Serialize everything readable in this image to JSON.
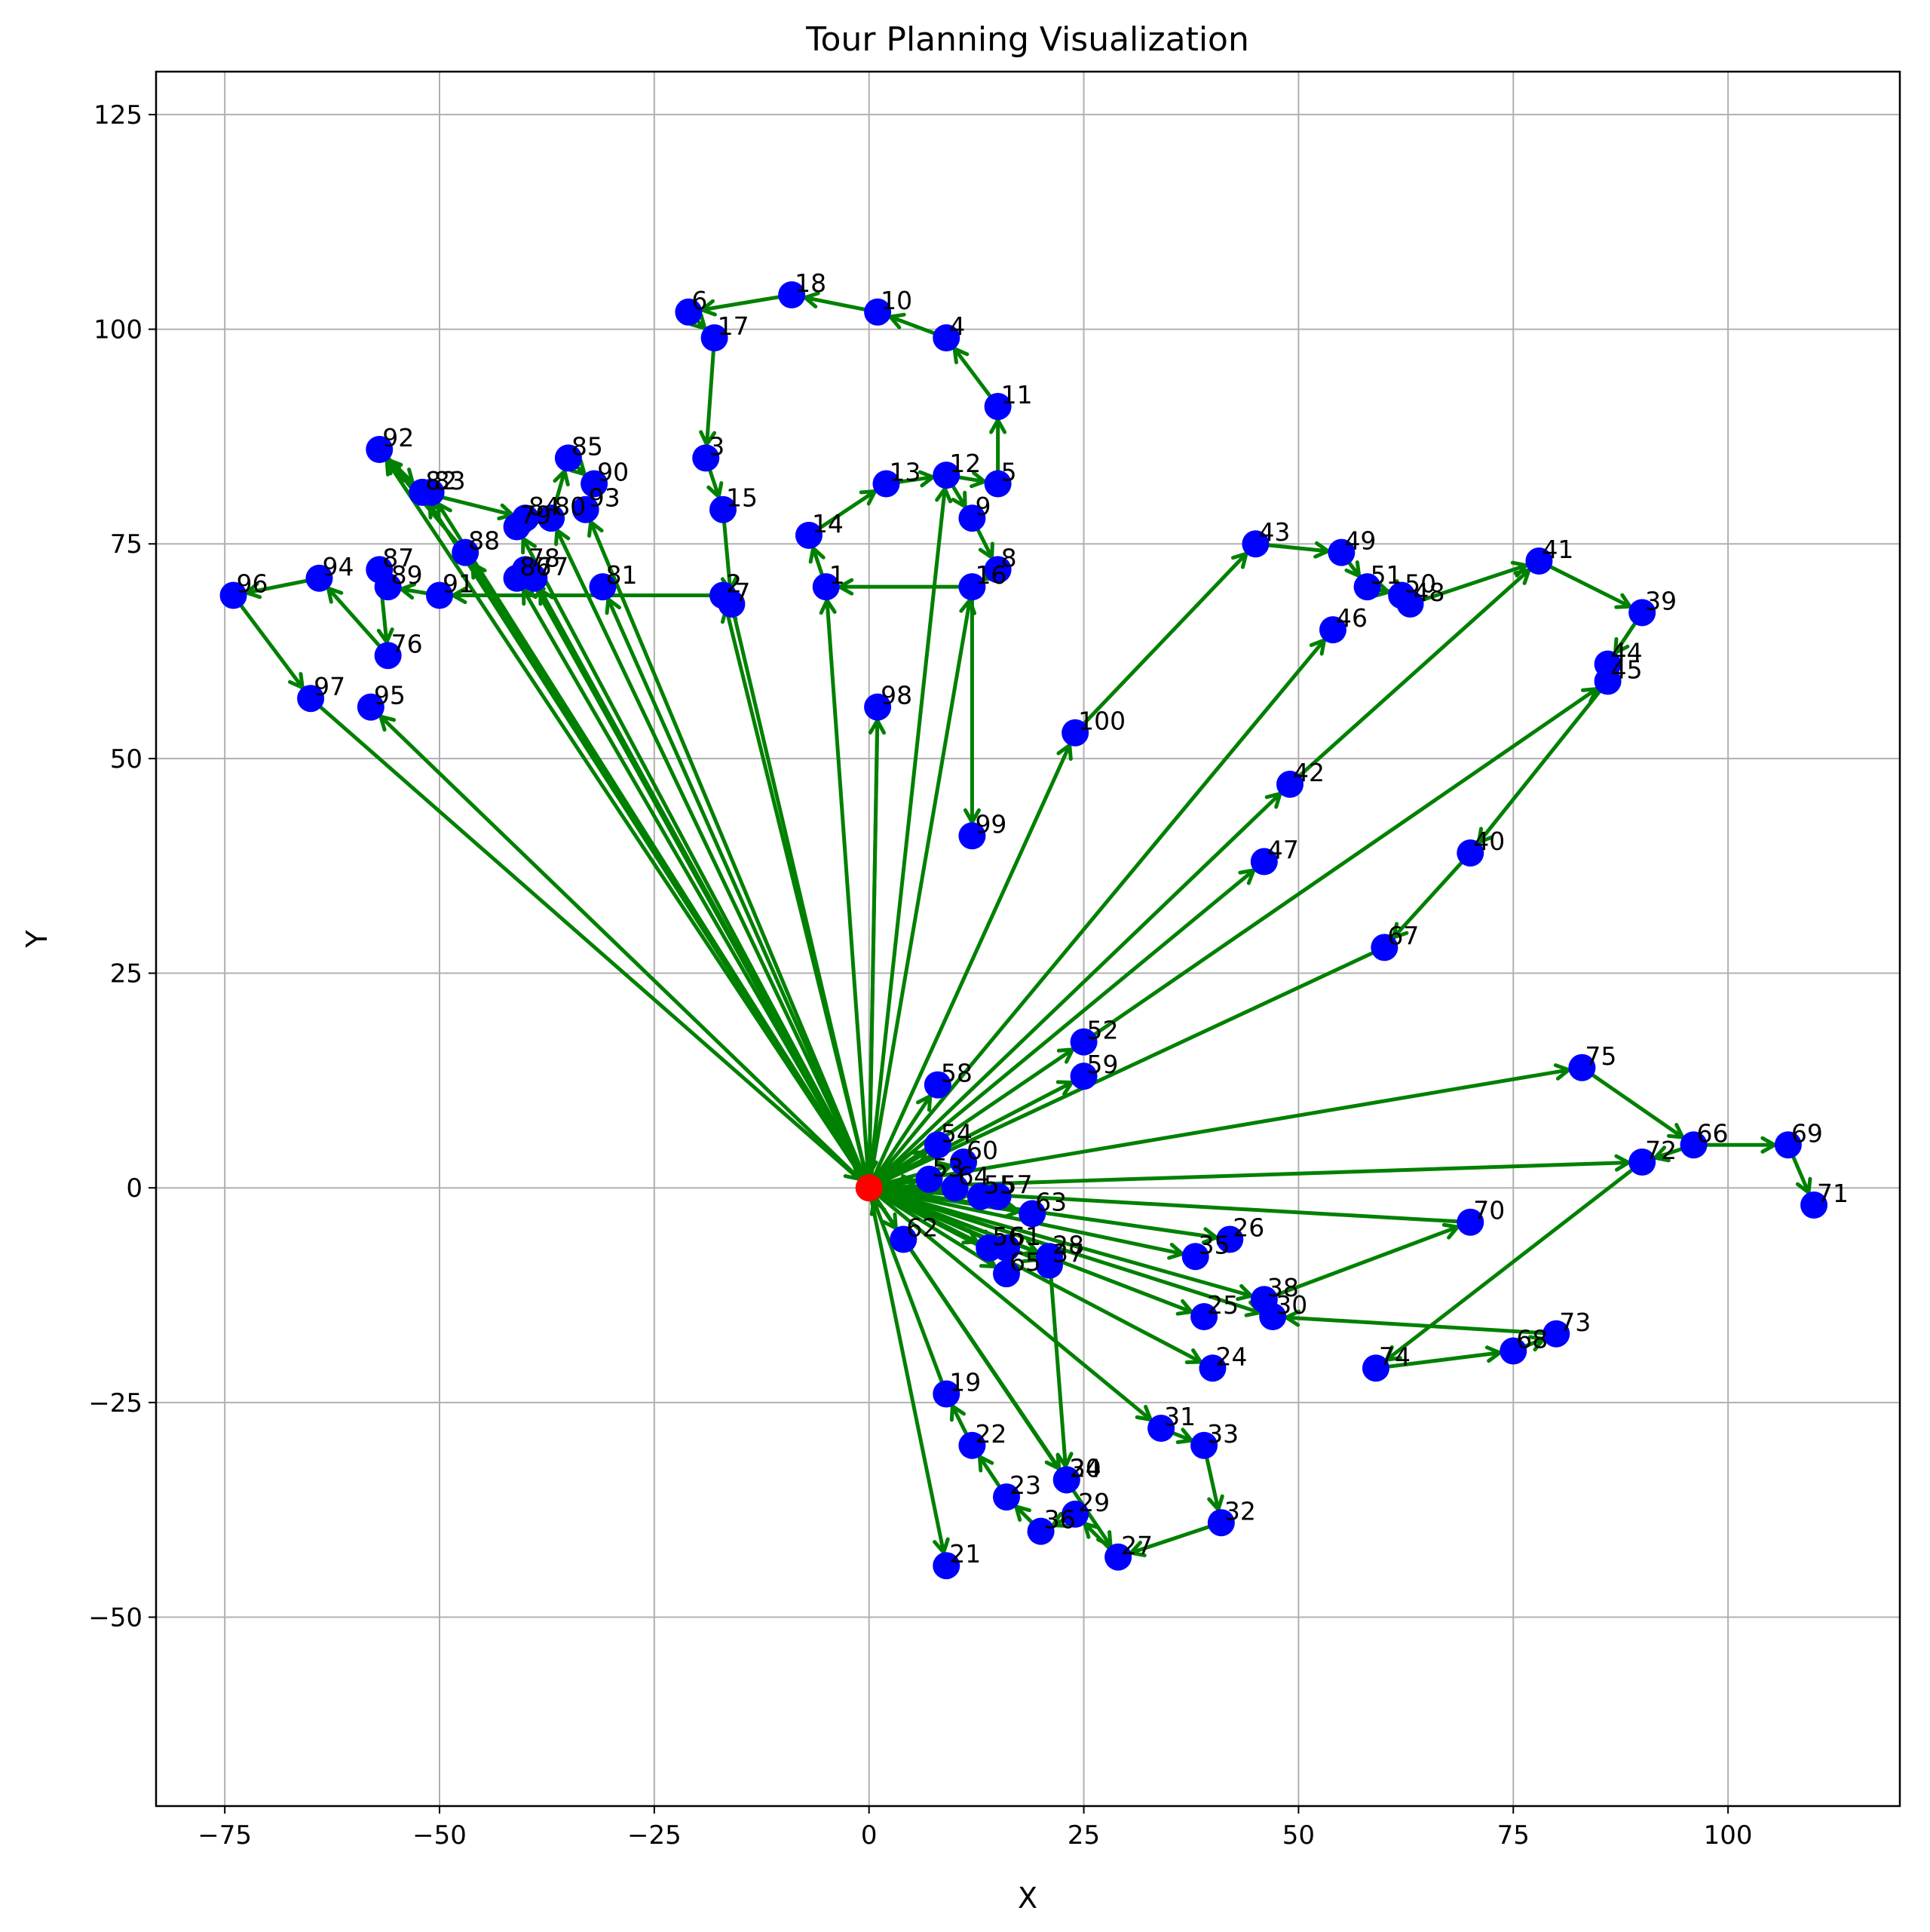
{
  "colors": {
    "node": "#0000ff",
    "depot": "#ff0000",
    "route": "#008000",
    "grid": "#b0b0b0",
    "background": "#ffffff"
  },
  "chart_data": {
    "type": "scatter",
    "title": "Tour Planning Visualization",
    "xlabel": "X",
    "ylabel": "Y",
    "xlim": [
      -83,
      120
    ],
    "ylim": [
      -72,
      130
    ],
    "grid": true,
    "xticks": [
      -75,
      -50,
      -25,
      0,
      25,
      50,
      75,
      100
    ],
    "yticks": [
      -50,
      -25,
      0,
      25,
      50,
      75,
      100,
      125
    ],
    "xtick_labels": [
      "−75",
      "−50",
      "−25",
      "0",
      "25",
      "50",
      "75",
      "100"
    ],
    "ytick_labels": [
      "−50",
      "−25",
      "0",
      "25",
      "50",
      "75",
      "100",
      "125"
    ],
    "depot": {
      "x": 0,
      "y": 0
    },
    "nodes": [
      {
        "id": "1",
        "x": -5,
        "y": 70
      },
      {
        "id": "2",
        "x": -17,
        "y": 69
      },
      {
        "id": "3",
        "x": -19,
        "y": 85
      },
      {
        "id": "4",
        "x": 9,
        "y": 99
      },
      {
        "id": "5",
        "x": 15,
        "y": 82
      },
      {
        "id": "6",
        "x": -21,
        "y": 102
      },
      {
        "id": "7",
        "x": -16,
        "y": 68
      },
      {
        "id": "8",
        "x": 15,
        "y": 72
      },
      {
        "id": "9",
        "x": 12,
        "y": 78
      },
      {
        "id": "10",
        "x": 1,
        "y": 102
      },
      {
        "id": "11",
        "x": 15,
        "y": 91
      },
      {
        "id": "12",
        "x": 9,
        "y": 83
      },
      {
        "id": "13",
        "x": 2,
        "y": 82
      },
      {
        "id": "14",
        "x": -7,
        "y": 76
      },
      {
        "id": "15",
        "x": -17,
        "y": 79
      },
      {
        "id": "16",
        "x": 12,
        "y": 70
      },
      {
        "id": "17",
        "x": -18,
        "y": 99
      },
      {
        "id": "18",
        "x": -9,
        "y": 104
      },
      {
        "id": "19",
        "x": 9,
        "y": -24
      },
      {
        "id": "20",
        "x": 23,
        "y": -34
      },
      {
        "id": "21",
        "x": 9,
        "y": -44
      },
      {
        "id": "22",
        "x": 12,
        "y": -30
      },
      {
        "id": "23",
        "x": 16,
        "y": -36
      },
      {
        "id": "24",
        "x": 40,
        "y": -21
      },
      {
        "id": "25",
        "x": 39,
        "y": -15
      },
      {
        "id": "26",
        "x": 42,
        "y": -6
      },
      {
        "id": "27",
        "x": 29,
        "y": -43
      },
      {
        "id": "28",
        "x": 21,
        "y": -8
      },
      {
        "id": "29",
        "x": 24,
        "y": -38
      },
      {
        "id": "30",
        "x": 47,
        "y": -15
      },
      {
        "id": "31",
        "x": 34,
        "y": -28
      },
      {
        "id": "32",
        "x": 41,
        "y": -39
      },
      {
        "id": "33",
        "x": 39,
        "y": -30
      },
      {
        "id": "34",
        "x": 23,
        "y": -34
      },
      {
        "id": "35",
        "x": 38,
        "y": -8
      },
      {
        "id": "36",
        "x": 20,
        "y": -40
      },
      {
        "id": "37",
        "x": 21,
        "y": -9
      },
      {
        "id": "38",
        "x": 46,
        "y": -13
      },
      {
        "id": "39",
        "x": 90,
        "y": 67
      },
      {
        "id": "40",
        "x": 70,
        "y": 39
      },
      {
        "id": "41",
        "x": 78,
        "y": 73
      },
      {
        "id": "42",
        "x": 49,
        "y": 47
      },
      {
        "id": "43",
        "x": 45,
        "y": 75
      },
      {
        "id": "44",
        "x": 86,
        "y": 61
      },
      {
        "id": "45",
        "x": 86,
        "y": 59
      },
      {
        "id": "46",
        "x": 54,
        "y": 65
      },
      {
        "id": "47",
        "x": 46,
        "y": 38
      },
      {
        "id": "48",
        "x": 63,
        "y": 68
      },
      {
        "id": "49",
        "x": 55,
        "y": 74
      },
      {
        "id": "50",
        "x": 62,
        "y": 69
      },
      {
        "id": "51",
        "x": 58,
        "y": 70
      },
      {
        "id": "52",
        "x": 25,
        "y": 17
      },
      {
        "id": "53",
        "x": 7,
        "y": 1
      },
      {
        "id": "54",
        "x": 8,
        "y": 5
      },
      {
        "id": "55",
        "x": 13,
        "y": -1
      },
      {
        "id": "56",
        "x": 14,
        "y": -7
      },
      {
        "id": "57",
        "x": 15,
        "y": -1
      },
      {
        "id": "58",
        "x": 8,
        "y": 12
      },
      {
        "id": "59",
        "x": 25,
        "y": 13
      },
      {
        "id": "60",
        "x": 11,
        "y": 3
      },
      {
        "id": "61",
        "x": 16,
        "y": -7
      },
      {
        "id": "62",
        "x": 4,
        "y": -6
      },
      {
        "id": "63",
        "x": 19,
        "y": -3
      },
      {
        "id": "64",
        "x": 10,
        "y": 0
      },
      {
        "id": "65",
        "x": 16,
        "y": -10
      },
      {
        "id": "66",
        "x": 96,
        "y": 5
      },
      {
        "id": "67",
        "x": 60,
        "y": 28
      },
      {
        "id": "68",
        "x": 75,
        "y": -19
      },
      {
        "id": "69",
        "x": 107,
        "y": 5
      },
      {
        "id": "70",
        "x": 70,
        "y": -4
      },
      {
        "id": "71",
        "x": 110,
        "y": -2
      },
      {
        "id": "72",
        "x": 90,
        "y": 3
      },
      {
        "id": "73",
        "x": 80,
        "y": -17
      },
      {
        "id": "74",
        "x": 59,
        "y": -21
      },
      {
        "id": "75",
        "x": 83,
        "y": 14
      },
      {
        "id": "76",
        "x": -56,
        "y": 62
      },
      {
        "id": "77",
        "x": -39,
        "y": 71
      },
      {
        "id": "78",
        "x": -40,
        "y": 72
      },
      {
        "id": "79",
        "x": -41,
        "y": 77
      },
      {
        "id": "80",
        "x": -37,
        "y": 78
      },
      {
        "id": "81",
        "x": -31,
        "y": 70
      },
      {
        "id": "82",
        "x": -52,
        "y": 81
      },
      {
        "id": "83",
        "x": -51,
        "y": 81
      },
      {
        "id": "84",
        "x": -40,
        "y": 78
      },
      {
        "id": "85",
        "x": -35,
        "y": 85
      },
      {
        "id": "86",
        "x": -41,
        "y": 71
      },
      {
        "id": "87",
        "x": -57,
        "y": 72
      },
      {
        "id": "88",
        "x": -47,
        "y": 74
      },
      {
        "id": "89",
        "x": -56,
        "y": 70
      },
      {
        "id": "90",
        "x": -32,
        "y": 82
      },
      {
        "id": "91",
        "x": -50,
        "y": 69
      },
      {
        "id": "92",
        "x": -57,
        "y": 86
      },
      {
        "id": "93",
        "x": -33,
        "y": 79
      },
      {
        "id": "94",
        "x": -64,
        "y": 71
      },
      {
        "id": "95",
        "x": -58,
        "y": 56
      },
      {
        "id": "96",
        "x": -74,
        "y": 69
      },
      {
        "id": "97",
        "x": -65,
        "y": 57
      },
      {
        "id": "98",
        "x": 1,
        "y": 56
      },
      {
        "id": "99",
        "x": 12,
        "y": 41
      },
      {
        "id": "100",
        "x": 24,
        "y": 53
      }
    ],
    "routes": [
      [
        "0",
        "98",
        "0"
      ],
      [
        "0",
        "16",
        "99"
      ],
      [
        "0",
        "12",
        "9",
        "8",
        "16",
        "1",
        "14",
        "13",
        "12",
        "5",
        "11",
        "4",
        "10",
        "18",
        "6",
        "17",
        "3",
        "15",
        "7",
        "0"
      ],
      [
        "0",
        "1"
      ],
      [
        "0",
        "100",
        "43",
        "49",
        "51",
        "50",
        "48",
        "41",
        "39",
        "44",
        "45",
        "40",
        "67",
        "0"
      ],
      [
        "0",
        "46"
      ],
      [
        "0",
        "42",
        "41"
      ],
      [
        "0",
        "47"
      ],
      [
        "0",
        "52",
        "45"
      ],
      [
        "0",
        "59"
      ],
      [
        "0",
        "58"
      ],
      [
        "0",
        "54"
      ],
      [
        "0",
        "60"
      ],
      [
        "0",
        "53"
      ],
      [
        "0",
        "64"
      ],
      [
        "0",
        "55"
      ],
      [
        "0",
        "57"
      ],
      [
        "0",
        "75",
        "66",
        "69",
        "71"
      ],
      [
        "66",
        "72",
        "74",
        "68",
        "73",
        "30",
        "38",
        "70",
        "0"
      ],
      [
        "0",
        "72"
      ],
      [
        "0",
        "63"
      ],
      [
        "0",
        "26"
      ],
      [
        "0",
        "35"
      ],
      [
        "0",
        "38"
      ],
      [
        "0",
        "25"
      ],
      [
        "0",
        "24"
      ],
      [
        "0",
        "56"
      ],
      [
        "0",
        "61"
      ],
      [
        "0",
        "65"
      ],
      [
        "0",
        "37"
      ],
      [
        "0",
        "28"
      ],
      [
        "0",
        "62"
      ],
      [
        "0",
        "31",
        "33",
        "32",
        "27",
        "29",
        "36",
        "23",
        "22",
        "19",
        "0"
      ],
      [
        "0",
        "21"
      ],
      [
        "0",
        "20"
      ],
      [
        "0",
        "34"
      ],
      [
        "28",
        "20"
      ],
      [
        "0",
        "2",
        "91",
        "89",
        "87",
        "76",
        "94",
        "96",
        "97",
        "0"
      ],
      [
        "0",
        "95"
      ],
      [
        "0",
        "92"
      ],
      [
        "0",
        "82"
      ],
      [
        "0",
        "83"
      ],
      [
        "0",
        "88",
        "92",
        "82",
        "84"
      ],
      [
        "0",
        "86"
      ],
      [
        "0",
        "78"
      ],
      [
        "0",
        "77"
      ],
      [
        "0",
        "79",
        "80",
        "85",
        "90",
        "93"
      ],
      [
        "0",
        "81"
      ],
      [
        "0",
        "93"
      ],
      [
        "0",
        "80"
      ],
      [
        "0",
        "27"
      ],
      [
        "0",
        "30"
      ]
    ]
  }
}
